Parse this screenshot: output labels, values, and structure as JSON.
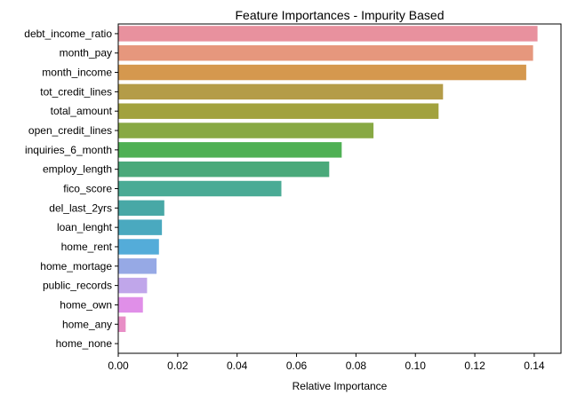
{
  "chart_data": {
    "type": "bar",
    "orientation": "horizontal",
    "title": "Feature Importances - Impurity Based",
    "xlabel": "Relative Importance",
    "ylabel": "",
    "xlim": [
      0,
      0.149
    ],
    "xticks": [
      0.0,
      0.02,
      0.04,
      0.06,
      0.08,
      0.1,
      0.12,
      0.14
    ],
    "xtick_labels": [
      "0.00",
      "0.02",
      "0.04",
      "0.06",
      "0.08",
      "0.10",
      "0.12",
      "0.14"
    ],
    "grid": false,
    "categories": [
      "debt_income_ratio",
      "month_pay",
      "month_income",
      "tot_credit_lines",
      "total_amount",
      "open_credit_lines",
      "inquiries_6_month",
      "employ_length",
      "fico_score",
      "del_last_2yrs",
      "loan_lenght",
      "home_rent",
      "home_mortage",
      "public_records",
      "home_own",
      "home_any",
      "home_none"
    ],
    "values": [
      0.1411,
      0.1396,
      0.1373,
      0.1093,
      0.1078,
      0.0859,
      0.0752,
      0.071,
      0.0549,
      0.0155,
      0.0147,
      0.0137,
      0.0129,
      0.0097,
      0.0083,
      0.0025,
      0.0
    ],
    "colors": [
      "#e8919e",
      "#e6977d",
      "#d5984e",
      "#b49c48",
      "#a2a23e",
      "#88a944",
      "#4fb054",
      "#4aa97a",
      "#4aab95",
      "#48a8a6",
      "#4aa9bf",
      "#54acd9",
      "#96a9e5",
      "#c0a6ea",
      "#e08fe8",
      "#e88ec6",
      "#e88eb0"
    ]
  }
}
